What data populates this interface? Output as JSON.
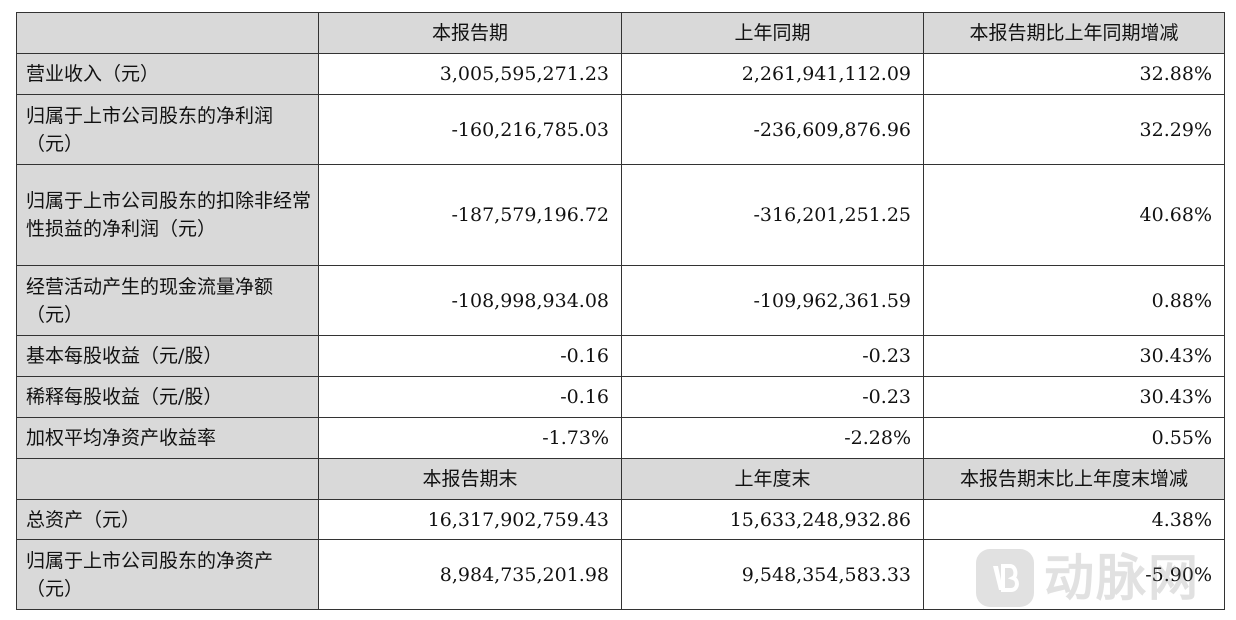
{
  "header1": {
    "col1": "本报告期",
    "col2": "上年同期",
    "col3": "本报告期比上年同期增减"
  },
  "rows1": [
    {
      "label": "营业收入（元）",
      "v1": "3,005,595,271.23",
      "v2": "2,261,941,112.09",
      "v3": "32.88%"
    },
    {
      "label": "归属于上市公司股东的净利润（元）",
      "v1": "-160,216,785.03",
      "v2": "-236,609,876.96",
      "v3": "32.29%"
    },
    {
      "label": "归属于上市公司股东的扣除非经常性损益的净利润（元）",
      "v1": "-187,579,196.72",
      "v2": "-316,201,251.25",
      "v3": "40.68%"
    },
    {
      "label": "经营活动产生的现金流量净额（元）",
      "v1": "-108,998,934.08",
      "v2": "-109,962,361.59",
      "v3": "0.88%"
    },
    {
      "label": "基本每股收益（元/股）",
      "v1": "-0.16",
      "v2": "-0.23",
      "v3": "30.43%"
    },
    {
      "label": "稀释每股收益（元/股）",
      "v1": "-0.16",
      "v2": "-0.23",
      "v3": "30.43%"
    },
    {
      "label": "加权平均净资产收益率",
      "v1": "-1.73%",
      "v2": "-2.28%",
      "v3": "0.55%"
    }
  ],
  "header2": {
    "col1": "本报告期末",
    "col2": "上年度末",
    "col3": "本报告期末比上年度末增减"
  },
  "rows2": [
    {
      "label": "总资产（元）",
      "v1": "16,317,902,759.43",
      "v2": "15,633,248,932.86",
      "v3": "4.38%"
    },
    {
      "label": "归属于上市公司股东的净资产（元）",
      "v1": "8,984,735,201.98",
      "v2": "9,548,354,583.33",
      "v3": "-5.90%"
    }
  ],
  "watermark": {
    "logo_icon": "vb-logo-icon",
    "text": "动脉网"
  }
}
